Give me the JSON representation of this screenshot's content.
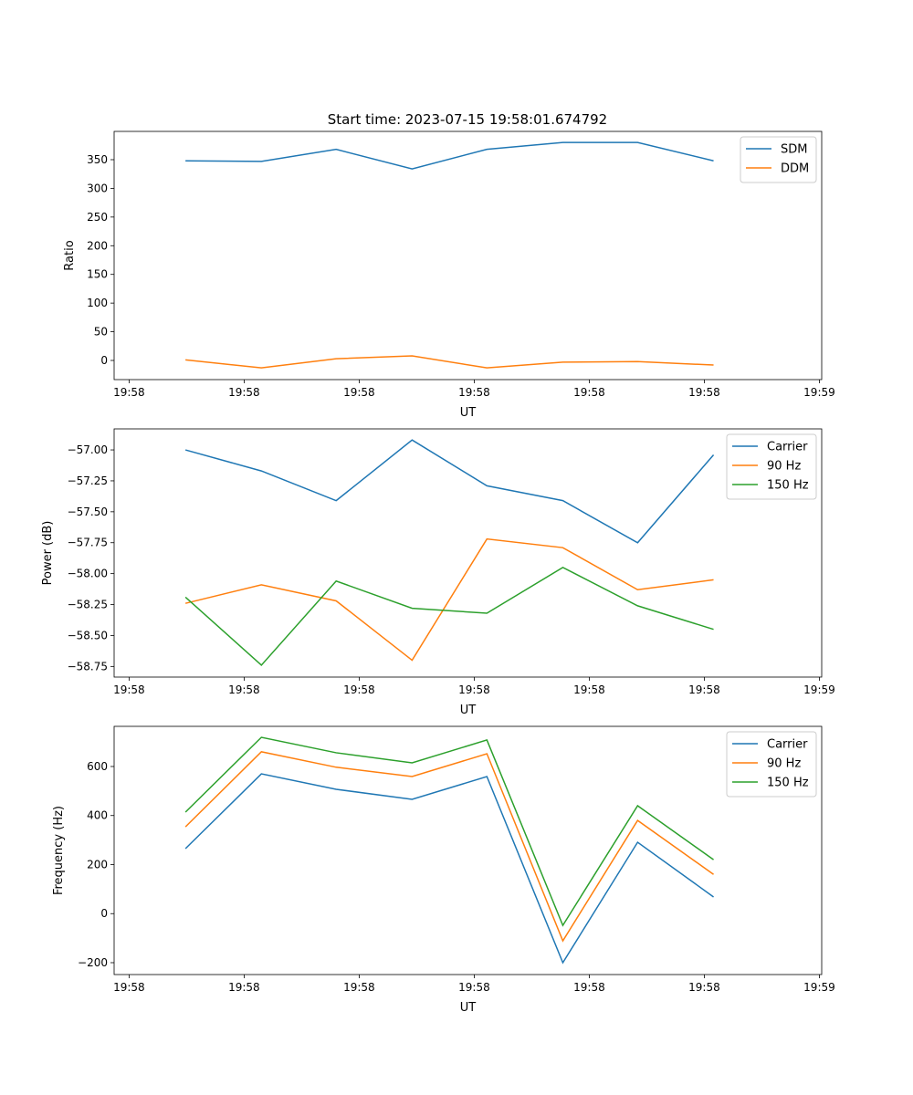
{
  "title": "Start time: 2023-07-15 19:58:01.674792",
  "chart_data": [
    {
      "type": "line",
      "xlabel": "UT",
      "ylabel": "Ratio",
      "x_units": "seconds after 19:58:00",
      "x": [
        4.9,
        11.5,
        18.0,
        24.6,
        31.1,
        37.7,
        44.2,
        50.8
      ],
      "xlim": [
        -1.3,
        60.2
      ],
      "xticks": [
        0,
        10,
        20,
        30,
        40,
        50,
        60
      ],
      "xtick_labels": [
        "19:58",
        "19:58",
        "19:58",
        "19:58",
        "19:58",
        "19:58",
        "19:59"
      ],
      "ylim": [
        -33.4,
        399.3
      ],
      "yticks": [
        0,
        50,
        100,
        150,
        200,
        250,
        300,
        350
      ],
      "ytick_labels": [
        "0",
        "50",
        "100",
        "150",
        "200",
        "250",
        "300",
        "350"
      ],
      "legend": "top-right",
      "series": [
        {
          "name": "SDM",
          "color": "#1f77b4",
          "values": [
            348,
            347,
            368,
            334,
            368,
            380,
            380,
            348
          ]
        },
        {
          "name": "DDM",
          "color": "#ff7f0e",
          "values": [
            1,
            -13,
            3,
            8,
            -13,
            -3,
            -2,
            -8
          ]
        }
      ]
    },
    {
      "type": "line",
      "xlabel": "UT",
      "ylabel": "Power (dB)",
      "x": [
        4.9,
        11.5,
        18.0,
        24.6,
        31.1,
        37.7,
        44.2,
        50.8
      ],
      "xlim": [
        -1.3,
        60.2
      ],
      "xticks": [
        0,
        10,
        20,
        30,
        40,
        50,
        60
      ],
      "xtick_labels": [
        "19:58",
        "19:58",
        "19:58",
        "19:58",
        "19:58",
        "19:58",
        "19:59"
      ],
      "ylim": [
        -58.836,
        -56.83
      ],
      "yticks": [
        -57.0,
        -57.25,
        -57.5,
        -57.75,
        -58.0,
        -58.25,
        -58.5,
        -58.75
      ],
      "ytick_labels": [
        "−57.00",
        "−57.25",
        "−57.50",
        "−57.75",
        "−58.00",
        "−58.25",
        "−58.50",
        "−58.75"
      ],
      "legend": "top-right",
      "series": [
        {
          "name": "Carrier",
          "color": "#1f77b4",
          "values": [
            -57.0,
            -57.17,
            -57.41,
            -56.92,
            -57.29,
            -57.41,
            -57.75,
            -57.04
          ]
        },
        {
          "name": "90 Hz",
          "color": "#ff7f0e",
          "values": [
            -58.24,
            -58.09,
            -58.22,
            -58.7,
            -57.72,
            -57.79,
            -58.13,
            -58.05
          ]
        },
        {
          "name": "150 Hz",
          "color": "#2ca02c",
          "values": [
            -58.19,
            -58.74,
            -58.06,
            -58.28,
            -58.32,
            -57.95,
            -58.26,
            -58.45
          ]
        }
      ]
    },
    {
      "type": "line",
      "xlabel": "UT",
      "ylabel": "Frequency (Hz)",
      "x": [
        4.9,
        11.5,
        18.0,
        24.6,
        31.1,
        37.7,
        44.2,
        50.8
      ],
      "xlim": [
        -1.3,
        60.2
      ],
      "xticks": [
        0,
        10,
        20,
        30,
        40,
        50,
        60
      ],
      "xtick_labels": [
        "19:58",
        "19:58",
        "19:58",
        "19:58",
        "19:58",
        "19:58",
        "19:59"
      ],
      "ylim": [
        -248.4,
        763.7
      ],
      "yticks": [
        -200,
        0,
        200,
        400,
        600
      ],
      "ytick_labels": [
        "−200",
        "0",
        "200",
        "400",
        "600"
      ],
      "legend": "top-right",
      "series": [
        {
          "name": "Carrier",
          "color": "#1f77b4",
          "values": [
            265,
            570,
            507,
            466,
            559,
            -200,
            291,
            68
          ]
        },
        {
          "name": "90 Hz",
          "color": "#ff7f0e",
          "values": [
            354,
            660,
            597,
            559,
            652,
            -111,
            380,
            160
          ]
        },
        {
          "name": "150 Hz",
          "color": "#2ca02c",
          "values": [
            414,
            719,
            656,
            615,
            708,
            -48,
            440,
            220
          ]
        }
      ]
    }
  ]
}
